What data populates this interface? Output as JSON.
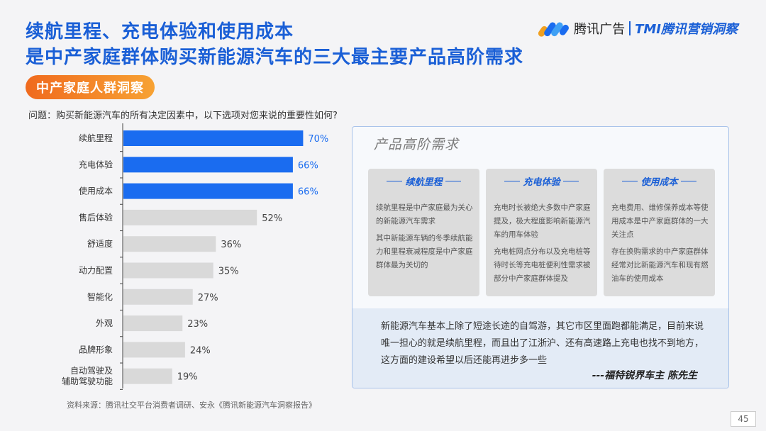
{
  "header": {
    "title_line1": "续航里程、充电体验和使用成本",
    "title_line2": "是中产家庭群体购买新能源汽车的三大最主要产品高阶需求",
    "brand_name": "腾讯广告",
    "brand_sub": "TMI腾讯营销洞察",
    "brand_logo_icon": "tencent-ads-logo-icon"
  },
  "badge": "中产家庭人群洞察",
  "question": "问题：购买新能源汽车的所有决定因素中，以下选项对您来说的重要性如何?",
  "chart_data": {
    "type": "bar",
    "orientation": "horizontal",
    "categories": [
      "续航里程",
      "充电体验",
      "使用成本",
      "售后体验",
      "舒适度",
      "动力配置",
      "智能化",
      "外观",
      "品牌形象",
      "自动驾驶及\n辅助驾驶功能"
    ],
    "values": [
      70,
      66,
      66,
      52,
      36,
      35,
      27,
      23,
      24,
      19
    ],
    "value_labels": [
      "70%",
      "66%",
      "66%",
      "52%",
      "36%",
      "35%",
      "27%",
      "23%",
      "24%",
      "19%"
    ],
    "unit": "%",
    "xlim": [
      0,
      100
    ],
    "highlight_count": 3,
    "colors": {
      "highlight": "#1a6cf0",
      "normal": "#d9d9d9",
      "highlight_label": "#1a6cf0",
      "normal_label": "#444444"
    },
    "grid": false
  },
  "source": "资料来源：腾讯社交平台消费者调研、安永《腾讯新能源汽车洞察报告》",
  "panel": {
    "title": "产品高阶需求",
    "cards": [
      {
        "title": "续航里程",
        "paragraphs": [
          "续航里程是中产家庭最为关心的新能源汽车需求",
          "其中新能源车辆的冬季续航能力和里程衰减程度是中产家庭群体最为关切的"
        ]
      },
      {
        "title": "充电体验",
        "paragraphs": [
          "充电时长被绝大多数中产家庭提及，极大程度影响新能源汽车的用车体验",
          "充电桩网点分布以及充电桩等待时长等充电桩便利性需求被部分中产家庭群体提及"
        ]
      },
      {
        "title": "使用成本",
        "paragraphs": [
          "充电费用、维修保养成本等使用成本是中产家庭群体的一大关注点",
          "存在换购需求的中产家庭群体经常对比新能源汽车和现有燃油车的使用成本"
        ]
      }
    ],
    "quote": "新能源汽车基本上除了短途长途的自驾游，其它市区里面跑都能满足，目前来说唯一担心的就是续航里程，而且出了江浙沪、还有高速路上充电也找不到地方，这方面的建设希望以后还能再进步多一些",
    "quote_author": "---福特锐界车主 陈先生"
  },
  "page_number": "45"
}
